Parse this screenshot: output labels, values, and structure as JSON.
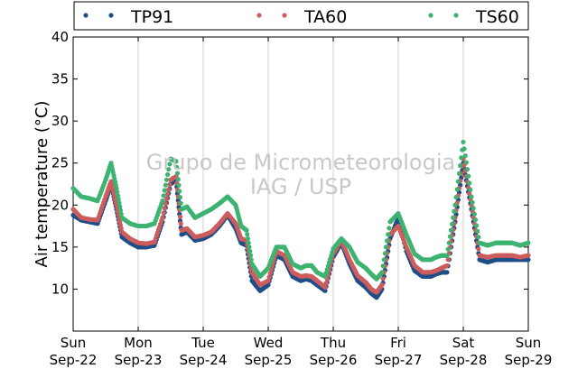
{
  "chart_data": {
    "type": "scatter",
    "ylabel": "Air temperature (°C)",
    "xlabel": "",
    "ylim": [
      5,
      40
    ],
    "xlim": [
      "2019-09-22 00:00",
      "2019-09-29 00:00"
    ],
    "y_ticks": [
      10,
      15,
      20,
      25,
      30,
      35,
      40
    ],
    "x_ticks": [
      {
        "at": "2019-09-22 00:00",
        "day": "Sun",
        "date": "Sep-22"
      },
      {
        "at": "2019-09-23 00:00",
        "day": "Mon",
        "date": "Sep-23"
      },
      {
        "at": "2019-09-24 00:00",
        "day": "Tue",
        "date": "Sep-24"
      },
      {
        "at": "2019-09-25 00:00",
        "day": "Wed",
        "date": "Sep-25"
      },
      {
        "at": "2019-09-26 00:00",
        "day": "Thu",
        "date": "Sep-26"
      },
      {
        "at": "2019-09-27 00:00",
        "day": "Fri",
        "date": "Sep-27"
      },
      {
        "at": "2019-09-28 00:00",
        "day": "Sat",
        "date": "Sep-28"
      },
      {
        "at": "2019-09-29 00:00",
        "day": "Sun",
        "date": "Sep-29"
      }
    ],
    "grid": "vertical",
    "legend": "top",
    "watermark": [
      "Grupo de Micrometeorologia",
      "IAG / USP"
    ],
    "series": [
      {
        "name": "TP91",
        "color": "#1f4e89",
        "x": [
          "2019-09-22 00:00",
          "2019-09-22 03:00",
          "2019-09-22 06:00",
          "2019-09-22 09:00",
          "2019-09-22 12:00",
          "2019-09-22 14:00",
          "2019-09-22 16:00",
          "2019-09-22 18:00",
          "2019-09-22 21:00",
          "2019-09-23 00:00",
          "2019-09-23 03:00",
          "2019-09-23 06:00",
          "2019-09-23 09:00",
          "2019-09-23 12:00",
          "2019-09-23 14:00",
          "2019-09-23 16:00",
          "2019-09-23 18:00",
          "2019-09-23 21:00",
          "2019-09-24 00:00",
          "2019-09-24 03:00",
          "2019-09-24 06:00",
          "2019-09-24 09:00",
          "2019-09-24 12:00",
          "2019-09-24 14:00",
          "2019-09-24 16:00",
          "2019-09-24 18:00",
          "2019-09-24 21:00",
          "2019-09-25 00:00",
          "2019-09-25 03:00",
          "2019-09-25 06:00",
          "2019-09-25 09:00",
          "2019-09-25 12:00",
          "2019-09-25 14:00",
          "2019-09-25 16:00",
          "2019-09-25 18:00",
          "2019-09-25 21:00",
          "2019-09-26 00:00",
          "2019-09-26 03:00",
          "2019-09-26 06:00",
          "2019-09-26 09:00",
          "2019-09-26 12:00",
          "2019-09-26 14:00",
          "2019-09-26 16:00",
          "2019-09-26 18:00",
          "2019-09-26 21:00",
          "2019-09-27 00:00",
          "2019-09-27 03:00",
          "2019-09-27 06:00",
          "2019-09-27 09:00",
          "2019-09-27 12:00",
          "2019-09-27 14:00",
          "2019-09-27 16:00",
          "2019-09-27 18:00",
          "2019-09-27 21:00",
          "2019-09-28 00:00",
          "2019-09-28 03:00",
          "2019-09-28 06:00",
          "2019-09-28 09:00",
          "2019-09-28 12:00",
          "2019-09-28 14:00",
          "2019-09-28 16:00",
          "2019-09-28 18:00",
          "2019-09-28 21:00",
          "2019-09-29 00:00"
        ],
        "y": [
          18.8,
          18.2,
          18.0,
          17.8,
          20.5,
          22.5,
          19.5,
          16.2,
          15.5,
          15.0,
          15.0,
          15.2,
          18.0,
          22.5,
          23.0,
          16.5,
          16.8,
          15.8,
          16.0,
          16.5,
          17.5,
          18.8,
          17.2,
          15.5,
          15.2,
          11.0,
          9.8,
          10.5,
          14.0,
          13.5,
          11.5,
          11.0,
          11.2,
          11.0,
          10.5,
          9.8,
          13.8,
          15.5,
          13.0,
          11.0,
          10.2,
          9.5,
          9.0,
          10.0,
          16.0,
          18.5,
          14.5,
          12.2,
          11.5,
          11.5,
          11.8,
          12.0,
          12.0,
          18.0,
          25.0,
          19.5,
          13.5,
          13.2,
          13.5,
          13.5,
          13.5,
          13.5,
          13.5,
          13.5
        ]
      },
      {
        "name": "TA60",
        "color": "#cd5c5c",
        "x": [
          "2019-09-22 00:00",
          "2019-09-22 03:00",
          "2019-09-22 06:00",
          "2019-09-22 09:00",
          "2019-09-22 12:00",
          "2019-09-22 14:00",
          "2019-09-22 16:00",
          "2019-09-22 18:00",
          "2019-09-22 21:00",
          "2019-09-23 00:00",
          "2019-09-23 03:00",
          "2019-09-23 06:00",
          "2019-09-23 09:00",
          "2019-09-23 12:00",
          "2019-09-23 14:00",
          "2019-09-23 16:00",
          "2019-09-23 18:00",
          "2019-09-23 21:00",
          "2019-09-24 00:00",
          "2019-09-24 03:00",
          "2019-09-24 06:00",
          "2019-09-24 09:00",
          "2019-09-24 12:00",
          "2019-09-24 14:00",
          "2019-09-24 16:00",
          "2019-09-24 18:00",
          "2019-09-24 21:00",
          "2019-09-25 00:00",
          "2019-09-25 03:00",
          "2019-09-25 06:00",
          "2019-09-25 09:00",
          "2019-09-25 12:00",
          "2019-09-25 14:00",
          "2019-09-25 16:00",
          "2019-09-25 18:00",
          "2019-09-25 21:00",
          "2019-09-26 00:00",
          "2019-09-26 03:00",
          "2019-09-26 06:00",
          "2019-09-26 09:00",
          "2019-09-26 12:00",
          "2019-09-26 14:00",
          "2019-09-26 16:00",
          "2019-09-26 18:00",
          "2019-09-26 21:00",
          "2019-09-27 00:00",
          "2019-09-27 03:00",
          "2019-09-27 06:00",
          "2019-09-27 09:00",
          "2019-09-27 12:00",
          "2019-09-27 14:00",
          "2019-09-27 16:00",
          "2019-09-27 18:00",
          "2019-09-27 21:00",
          "2019-09-28 00:00",
          "2019-09-28 03:00",
          "2019-09-28 06:00",
          "2019-09-28 09:00",
          "2019-09-28 12:00",
          "2019-09-28 14:00",
          "2019-09-28 16:00",
          "2019-09-28 18:00",
          "2019-09-28 21:00",
          "2019-09-29 00:00"
        ],
        "y": [
          19.5,
          18.5,
          18.3,
          18.2,
          21.0,
          22.8,
          20.0,
          16.8,
          16.0,
          15.5,
          15.4,
          15.6,
          18.5,
          23.0,
          23.4,
          17.0,
          17.2,
          16.2,
          16.4,
          16.8,
          17.8,
          19.0,
          17.8,
          16.0,
          15.8,
          12.0,
          10.5,
          11.0,
          14.5,
          14.0,
          12.0,
          11.5,
          11.6,
          11.5,
          11.0,
          10.2,
          14.2,
          15.8,
          13.5,
          11.6,
          10.8,
          10.0,
          9.6,
          10.5,
          16.5,
          17.5,
          15.0,
          12.8,
          12.0,
          12.0,
          12.2,
          12.5,
          12.8,
          18.5,
          25.5,
          20.0,
          14.0,
          13.8,
          14.0,
          14.0,
          14.0,
          14.0,
          13.8,
          14.0
        ]
      },
      {
        "name": "TS60",
        "color": "#3cb371",
        "x": [
          "2019-09-22 00:00",
          "2019-09-22 03:00",
          "2019-09-22 06:00",
          "2019-09-22 09:00",
          "2019-09-22 12:00",
          "2019-09-22 14:00",
          "2019-09-22 16:00",
          "2019-09-22 18:00",
          "2019-09-22 21:00",
          "2019-09-23 00:00",
          "2019-09-23 03:00",
          "2019-09-23 06:00",
          "2019-09-23 09:00",
          "2019-09-23 12:00",
          "2019-09-23 14:00",
          "2019-09-23 16:00",
          "2019-09-23 18:00",
          "2019-09-23 21:00",
          "2019-09-24 00:00",
          "2019-09-24 03:00",
          "2019-09-24 06:00",
          "2019-09-24 09:00",
          "2019-09-24 12:00",
          "2019-09-24 14:00",
          "2019-09-24 16:00",
          "2019-09-24 18:00",
          "2019-09-24 21:00",
          "2019-09-25 00:00",
          "2019-09-25 03:00",
          "2019-09-25 06:00",
          "2019-09-25 09:00",
          "2019-09-25 12:00",
          "2019-09-25 14:00",
          "2019-09-25 16:00",
          "2019-09-25 18:00",
          "2019-09-25 21:00",
          "2019-09-26 00:00",
          "2019-09-26 03:00",
          "2019-09-26 06:00",
          "2019-09-26 09:00",
          "2019-09-26 12:00",
          "2019-09-26 14:00",
          "2019-09-26 16:00",
          "2019-09-26 18:00",
          "2019-09-26 21:00",
          "2019-09-27 00:00",
          "2019-09-27 03:00",
          "2019-09-27 06:00",
          "2019-09-27 09:00",
          "2019-09-27 12:00",
          "2019-09-27 14:00",
          "2019-09-27 16:00",
          "2019-09-27 18:00",
          "2019-09-27 21:00",
          "2019-09-28 00:00",
          "2019-09-28 03:00",
          "2019-09-28 06:00",
          "2019-09-28 09:00",
          "2019-09-28 12:00",
          "2019-09-28 14:00",
          "2019-09-28 16:00",
          "2019-09-28 18:00",
          "2019-09-28 21:00",
          "2019-09-29 00:00"
        ],
        "y": [
          22.0,
          21.0,
          20.8,
          20.5,
          23.0,
          25.0,
          22.0,
          18.5,
          17.8,
          17.5,
          17.5,
          17.8,
          20.5,
          25.5,
          25.2,
          19.5,
          19.8,
          18.5,
          19.0,
          19.5,
          20.2,
          21.0,
          20.0,
          17.5,
          17.0,
          13.0,
          11.5,
          12.5,
          15.0,
          15.0,
          13.0,
          12.5,
          12.8,
          12.8,
          12.0,
          11.5,
          14.8,
          16.0,
          15.0,
          13.2,
          12.5,
          11.8,
          11.2,
          12.0,
          18.0,
          19.0,
          16.5,
          14.2,
          13.5,
          13.5,
          13.8,
          14.0,
          14.0,
          20.0,
          27.5,
          21.0,
          15.5,
          15.2,
          15.5,
          15.5,
          15.5,
          15.5,
          15.2,
          15.5
        ]
      }
    ]
  }
}
